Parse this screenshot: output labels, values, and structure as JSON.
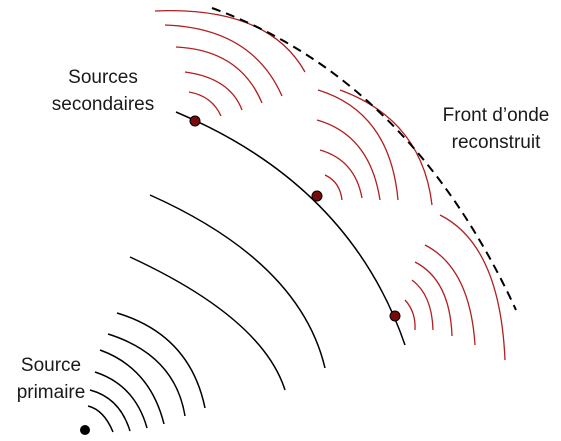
{
  "labels": {
    "secondary_line1": "Sources",
    "secondary_line2": "secondaires",
    "front_line1": "Front d’onde",
    "front_line2": "reconstruit",
    "primary_line1": "Source",
    "primary_line2": "primaire"
  },
  "colors": {
    "primary_wave": "#000000",
    "secondary_wave": "#b02020",
    "secondary_source_fill": "#7a0a0a",
    "reconstructed_front": "#000000",
    "text": "#1a1a1a"
  }
}
